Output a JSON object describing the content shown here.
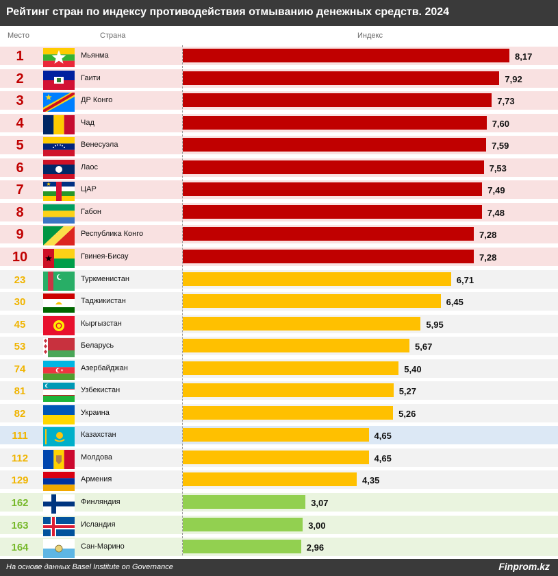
{
  "title": "Рейтинг стран по индексу противодействия отмыванию денежных средств. 2024",
  "headers": {
    "rank": "Место",
    "country": "Страна",
    "index": "Индекс"
  },
  "source": "На основе данных Basel Institute on Governance",
  "brand": "Finprom.kz",
  "colors": {
    "red_bar": "#c00000",
    "red_text": "#c00000",
    "red_row": "#f9e1e1",
    "yellow_bar": "#ffc000",
    "yellow_text": "#f0b400",
    "grey_row": "#f2f2f2",
    "green_bar": "#92d050",
    "green_text": "#76b82a",
    "green_row": "#eaf4df",
    "highlight_row": "#dce8f5",
    "header_dark": "#3a3a3a"
  },
  "chart_data": {
    "type": "bar",
    "orientation": "horizontal",
    "xlim": [
      0,
      8.5
    ],
    "rows": [
      {
        "rank": "1",
        "country": "Мьянма",
        "value": 8.17,
        "label": "8,17",
        "group": "red",
        "flag": "myanmar-flag-icon"
      },
      {
        "rank": "2",
        "country": "Гаити",
        "value": 7.92,
        "label": "7,92",
        "group": "red",
        "flag": "haiti-flag-icon"
      },
      {
        "rank": "3",
        "country": "ДР Конго",
        "value": 7.73,
        "label": "7,73",
        "group": "red",
        "flag": "dr-congo-flag-icon"
      },
      {
        "rank": "4",
        "country": "Чад",
        "value": 7.6,
        "label": "7,60",
        "group": "red",
        "flag": "chad-flag-icon"
      },
      {
        "rank": "5",
        "country": "Венесуэла",
        "value": 7.59,
        "label": "7,59",
        "group": "red",
        "flag": "venezuela-flag-icon"
      },
      {
        "rank": "6",
        "country": "Лаос",
        "value": 7.53,
        "label": "7,53",
        "group": "red",
        "flag": "laos-flag-icon"
      },
      {
        "rank": "7",
        "country": "ЦАР",
        "value": 7.49,
        "label": "7,49",
        "group": "red",
        "flag": "car-flag-icon"
      },
      {
        "rank": "8",
        "country": "Габон",
        "value": 7.48,
        "label": "7,48",
        "group": "red",
        "flag": "gabon-flag-icon"
      },
      {
        "rank": "9",
        "country": "Республика Конго",
        "value": 7.28,
        "label": "7,28",
        "group": "red",
        "flag": "congo-flag-icon"
      },
      {
        "rank": "10",
        "country": "Гвинея-Бисау",
        "value": 7.28,
        "label": "7,28",
        "group": "red",
        "flag": "guinea-bissau-flag-icon"
      },
      {
        "rank": "23",
        "country": "Туркменистан",
        "value": 6.71,
        "label": "6,71",
        "group": "yellow",
        "flag": "turkmenistan-flag-icon"
      },
      {
        "rank": "30",
        "country": "Таджикистан",
        "value": 6.45,
        "label": "6,45",
        "group": "yellow",
        "flag": "tajikistan-flag-icon"
      },
      {
        "rank": "45",
        "country": "Кыргызстан",
        "value": 5.95,
        "label": "5,95",
        "group": "yellow",
        "flag": "kyrgyzstan-flag-icon"
      },
      {
        "rank": "53",
        "country": "Беларусь",
        "value": 5.67,
        "label": "5,67",
        "group": "yellow",
        "flag": "belarus-flag-icon"
      },
      {
        "rank": "74",
        "country": "Азербайджан",
        "value": 5.4,
        "label": "5,40",
        "group": "yellow",
        "flag": "azerbaijan-flag-icon"
      },
      {
        "rank": "81",
        "country": "Узбекистан",
        "value": 5.27,
        "label": "5,27",
        "group": "yellow",
        "flag": "uzbekistan-flag-icon"
      },
      {
        "rank": "82",
        "country": "Украина",
        "value": 5.26,
        "label": "5,26",
        "group": "yellow",
        "flag": "ukraine-flag-icon"
      },
      {
        "rank": "111",
        "country": "Казахстан",
        "value": 4.65,
        "label": "4,65",
        "group": "yellow",
        "flag": "kazakhstan-flag-icon",
        "highlight": true
      },
      {
        "rank": "112",
        "country": "Молдова",
        "value": 4.65,
        "label": "4,65",
        "group": "yellow",
        "flag": "moldova-flag-icon"
      },
      {
        "rank": "129",
        "country": "Армения",
        "value": 4.35,
        "label": "4,35",
        "group": "yellow",
        "flag": "armenia-flag-icon"
      },
      {
        "rank": "162",
        "country": "Финляндия",
        "value": 3.07,
        "label": "3,07",
        "group": "green",
        "flag": "finland-flag-icon"
      },
      {
        "rank": "163",
        "country": "Исландия",
        "value": 3.0,
        "label": "3,00",
        "group": "green",
        "flag": "iceland-flag-icon"
      },
      {
        "rank": "164",
        "country": "Сан-Марино",
        "value": 2.96,
        "label": "2,96",
        "group": "green",
        "flag": "san-marino-flag-icon"
      }
    ]
  }
}
